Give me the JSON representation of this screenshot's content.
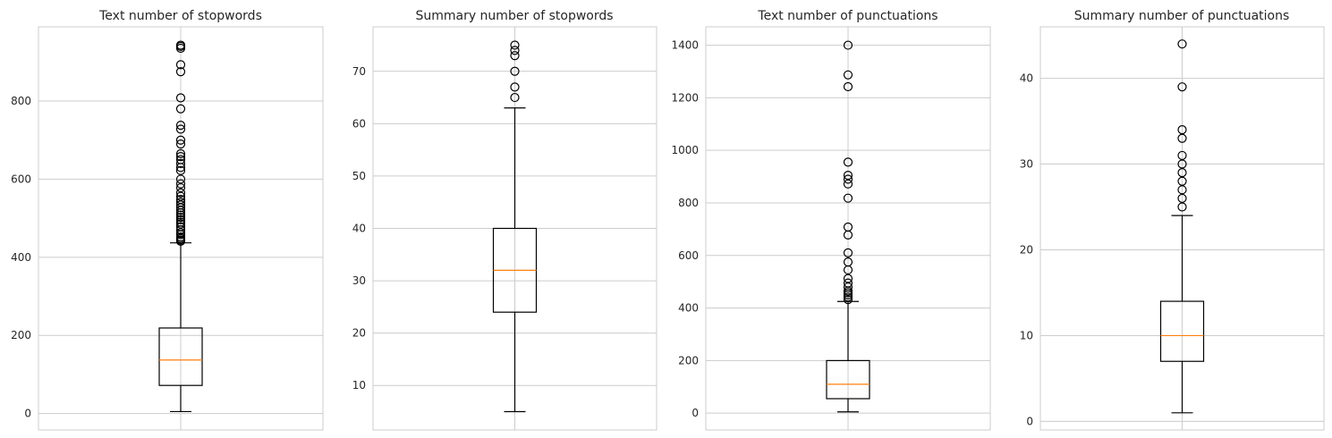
{
  "chart_data": [
    {
      "type": "box",
      "title": "Text number of stopwords",
      "yticks": [
        0,
        200,
        400,
        600,
        800
      ],
      "ylim": [
        -42,
        990
      ],
      "grid": true,
      "box": {
        "whisker_low": 5,
        "q1": 72,
        "median": 137,
        "q3": 219,
        "whisker_high": 437
      },
      "outliers": [
        441,
        444,
        448,
        452,
        458,
        463,
        470,
        478,
        485,
        490,
        496,
        502,
        508,
        514,
        520,
        527,
        534,
        541,
        548,
        556,
        565,
        578,
        588,
        600,
        622,
        630,
        640,
        650,
        658,
        665,
        690,
        700,
        728,
        738,
        780,
        808,
        875,
        893,
        935,
        940,
        943
      ]
    },
    {
      "type": "box",
      "title": "Summary number of stopwords",
      "yticks": [
        10,
        20,
        30,
        40,
        50,
        60,
        70
      ],
      "ylim": [
        1.5,
        78.5
      ],
      "grid": true,
      "box": {
        "whisker_low": 5,
        "q1": 24,
        "median": 32,
        "q3": 40,
        "whisker_high": 63
      },
      "outliers": [
        65,
        67,
        70,
        73,
        74,
        75
      ]
    },
    {
      "type": "box",
      "title": "Text number of punctuations",
      "yticks": [
        0,
        200,
        400,
        600,
        800,
        1000,
        1200,
        1400
      ],
      "ylim": [
        -64,
        1470
      ],
      "grid": true,
      "box": {
        "whisker_low": 5,
        "q1": 55,
        "median": 110,
        "q3": 200,
        "whisker_high": 425
      },
      "outliers": [
        432,
        442,
        450,
        458,
        465,
        480,
        495,
        512,
        545,
        575,
        610,
        678,
        708,
        818,
        872,
        890,
        905,
        955,
        1242,
        1287,
        1400
      ]
    },
    {
      "type": "box",
      "title": "Summary number of punctuations",
      "yticks": [
        0,
        10,
        20,
        30,
        40
      ],
      "ylim": [
        -1,
        46
      ],
      "grid": true,
      "box": {
        "whisker_low": 1,
        "q1": 7,
        "median": 10,
        "q3": 14,
        "whisker_high": 24
      },
      "outliers": [
        25,
        26,
        27,
        28,
        29,
        30,
        31,
        33,
        34,
        39,
        44
      ]
    }
  ]
}
